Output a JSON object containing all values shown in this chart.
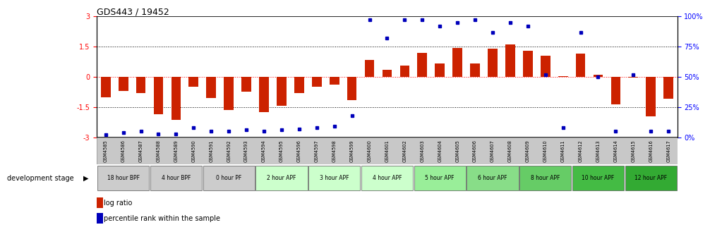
{
  "title": "GDS443 / 19452",
  "samples": [
    "GSM4585",
    "GSM4586",
    "GSM4587",
    "GSM4588",
    "GSM4589",
    "GSM4590",
    "GSM4591",
    "GSM4592",
    "GSM4593",
    "GSM4594",
    "GSM4595",
    "GSM4596",
    "GSM4597",
    "GSM4598",
    "GSM4599",
    "GSM4600",
    "GSM4601",
    "GSM4602",
    "GSM4603",
    "GSM4604",
    "GSM4605",
    "GSM4606",
    "GSM4607",
    "GSM4608",
    "GSM4609",
    "GSM4610",
    "GSM4611",
    "GSM4612",
    "GSM4613",
    "GSM4614",
    "GSM4615",
    "GSM4616",
    "GSM4617"
  ],
  "log_ratios": [
    -1.0,
    -0.7,
    -0.8,
    -1.85,
    -2.15,
    -0.5,
    -1.05,
    -1.65,
    -0.75,
    -1.75,
    -1.45,
    -0.8,
    -0.5,
    -0.4,
    -1.15,
    0.85,
    0.35,
    0.55,
    1.2,
    0.65,
    1.45,
    0.65,
    1.4,
    1.6,
    1.3,
    1.05,
    0.05,
    1.15,
    0.1,
    -1.35,
    -0.05,
    -1.95,
    -1.1
  ],
  "percentile_ranks": [
    2,
    4,
    5,
    3,
    3,
    8,
    5,
    5,
    6,
    5,
    6,
    7,
    8,
    9,
    18,
    97,
    82,
    97,
    97,
    92,
    95,
    97,
    87,
    95,
    92,
    52,
    8,
    87,
    50,
    5,
    52,
    5,
    5
  ],
  "stages": [
    {
      "label": "18 hour BPF",
      "start": 0,
      "end": 3,
      "color": "#cccccc"
    },
    {
      "label": "4 hour BPF",
      "start": 3,
      "end": 6,
      "color": "#cccccc"
    },
    {
      "label": "0 hour PF",
      "start": 6,
      "end": 9,
      "color": "#cccccc"
    },
    {
      "label": "2 hour APF",
      "start": 9,
      "end": 12,
      "color": "#ccffcc"
    },
    {
      "label": "3 hour APF",
      "start": 12,
      "end": 15,
      "color": "#ccffcc"
    },
    {
      "label": "4 hour APF",
      "start": 15,
      "end": 18,
      "color": "#ccffcc"
    },
    {
      "label": "5 hour APF",
      "start": 18,
      "end": 21,
      "color": "#99ee99"
    },
    {
      "label": "6 hour APF",
      "start": 21,
      "end": 24,
      "color": "#88dd88"
    },
    {
      "label": "8 hour APF",
      "start": 24,
      "end": 27,
      "color": "#66cc66"
    },
    {
      "label": "10 hour APF",
      "start": 27,
      "end": 30,
      "color": "#44bb44"
    },
    {
      "label": "12 hour APF",
      "start": 30,
      "end": 33,
      "color": "#33aa33"
    }
  ],
  "bar_color": "#cc2200",
  "dot_color": "#0000bb",
  "ylim": [
    -3.0,
    3.0
  ],
  "y2lim": [
    0,
    100
  ],
  "ytick_labels": [
    "-3",
    "-1.5",
    "0",
    "1.5",
    "3"
  ],
  "ytick_vals": [
    -3,
    -1.5,
    0,
    1.5,
    3
  ],
  "y2tick_vals": [
    0,
    25,
    50,
    75,
    100
  ],
  "y2tick_labels": [
    "0%",
    "25%",
    "50%",
    "75%",
    "100%"
  ],
  "legend_log_ratio": "log ratio",
  "legend_percentile": "percentile rank within the sample",
  "dev_stage_label": "development stage"
}
